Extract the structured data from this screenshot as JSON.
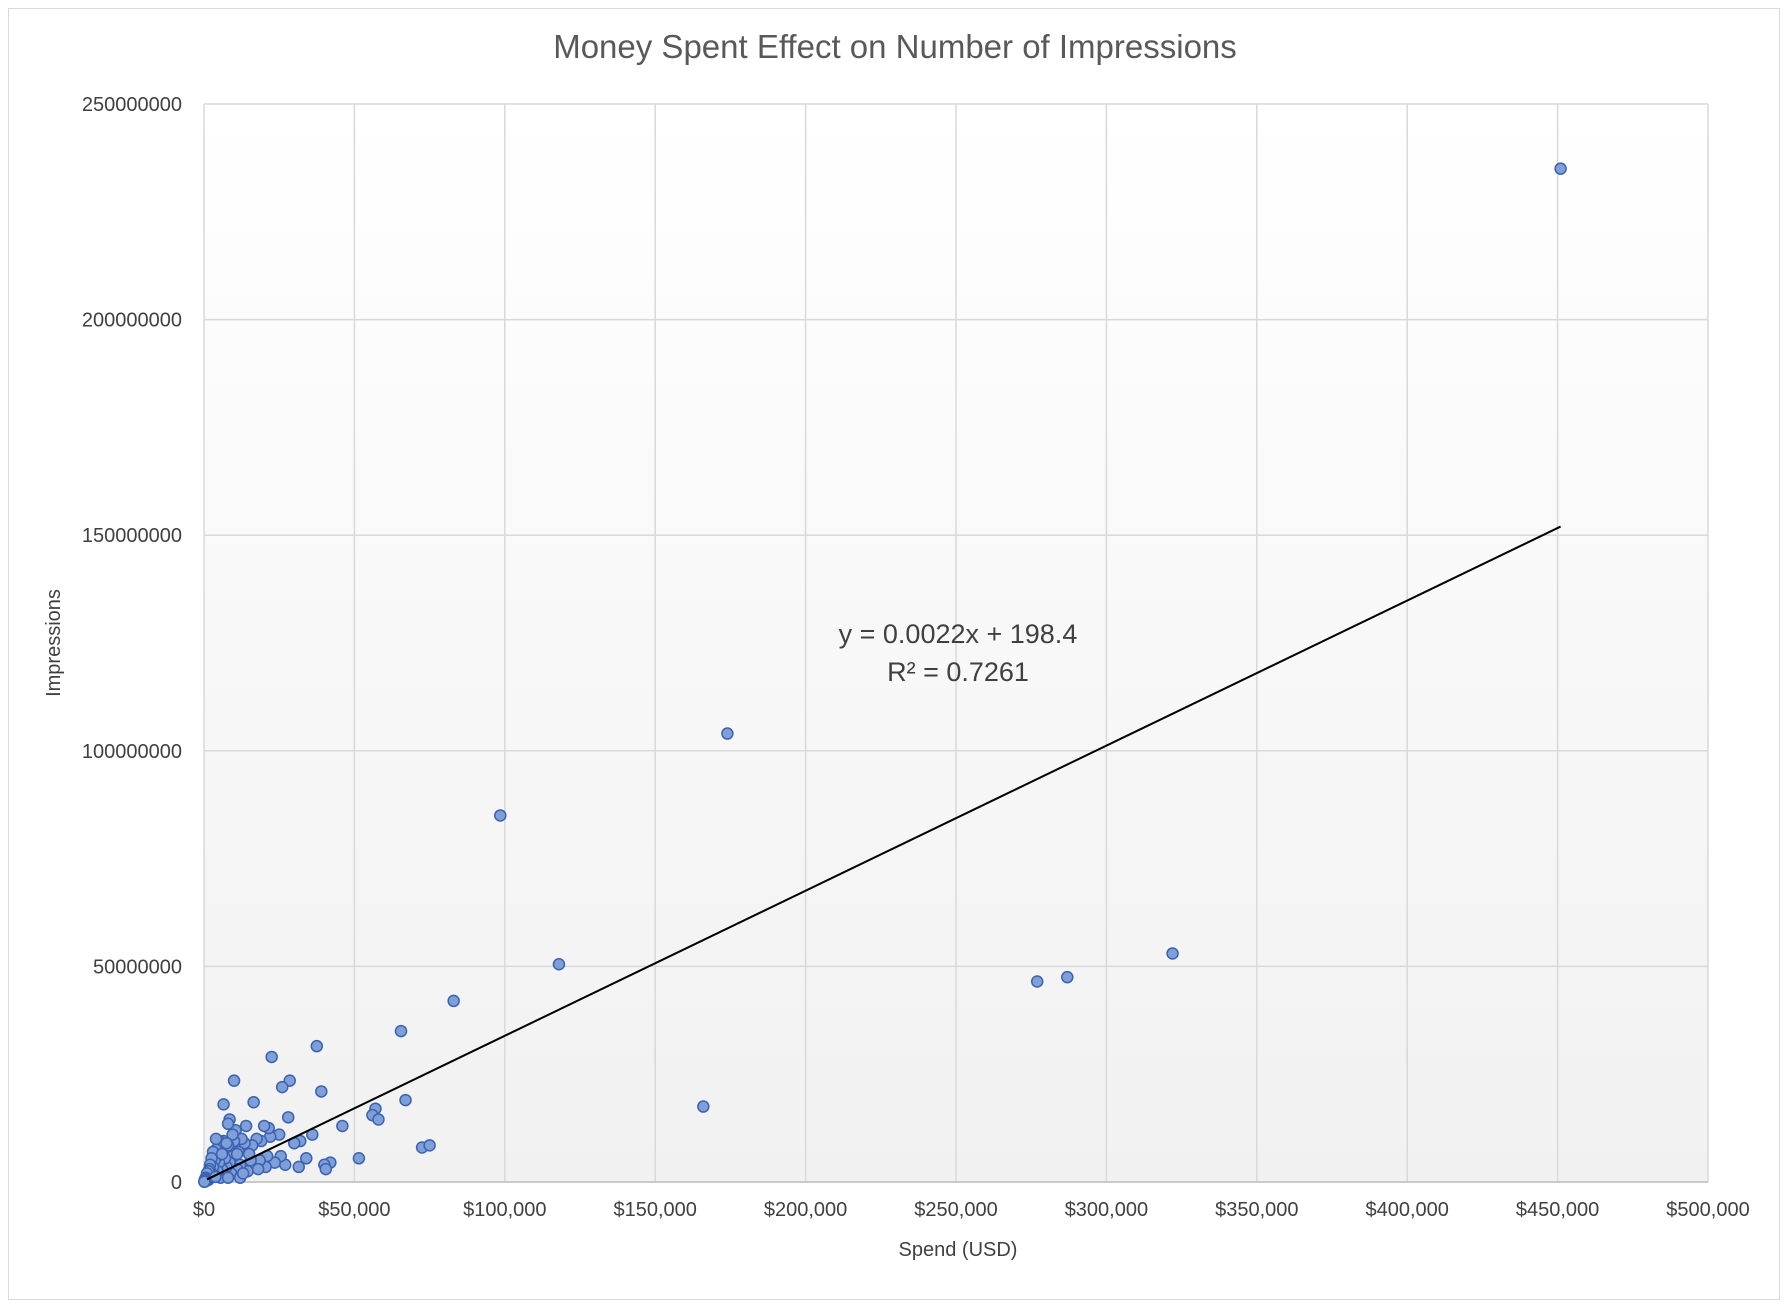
{
  "chart_data": {
    "type": "scatter",
    "title": "Money Spent Effect on Number of Impressions",
    "xlabel": "Spend (USD)",
    "ylabel": "Impressions",
    "xlim": [
      0,
      500000
    ],
    "ylim": [
      0,
      250000000
    ],
    "x_ticks": [
      0,
      50000,
      100000,
      150000,
      200000,
      250000,
      300000,
      350000,
      400000,
      450000,
      500000
    ],
    "x_tick_labels": [
      "$0",
      "$50,000",
      "$100,000",
      "$150,000",
      "$200,000",
      "$250,000",
      "$300,000",
      "$350,000",
      "$400,000",
      "$450,000",
      "$500,000"
    ],
    "y_ticks": [
      0,
      50000000,
      100000000,
      150000000,
      200000000,
      250000000
    ],
    "y_tick_labels": [
      "0",
      "50000000",
      "100000000",
      "150000000",
      "200000000",
      "250000000"
    ],
    "grid": true,
    "legend": "none",
    "marker_color": "#7f9fd9",
    "marker_edge_color": "#3b62b0",
    "trendline": {
      "type": "linear",
      "slope": 0.0022,
      "intercept": 198.4,
      "x_range": [
        1000,
        451000
      ],
      "color": "#000000",
      "equation_label": "y = 0.0022x + 198.4",
      "r2_label": "R² = 0.7261"
    },
    "points": [
      [
        451000,
        235000000
      ],
      [
        174000,
        104000000
      ],
      [
        98500,
        85000000
      ],
      [
        118000,
        50500000
      ],
      [
        322000,
        53000000
      ],
      [
        287000,
        47500000
      ],
      [
        277000,
        46500000
      ],
      [
        166000,
        17500000
      ],
      [
        83000,
        42000000
      ],
      [
        65500,
        35000000
      ],
      [
        67000,
        19000000
      ],
      [
        57000,
        17000000
      ],
      [
        56000,
        15500000
      ],
      [
        58000,
        14500000
      ],
      [
        72500,
        8000000
      ],
      [
        75000,
        8500000
      ],
      [
        51500,
        5500000
      ],
      [
        46000,
        13000000
      ],
      [
        42000,
        4500000
      ],
      [
        40000,
        4000000
      ],
      [
        40500,
        3000000
      ],
      [
        37500,
        31500000
      ],
      [
        39000,
        21000000
      ],
      [
        36000,
        11000000
      ],
      [
        34000,
        5500000
      ],
      [
        32000,
        9500000
      ],
      [
        31500,
        3500000
      ],
      [
        30000,
        9000000
      ],
      [
        28500,
        23500000
      ],
      [
        28000,
        15000000
      ],
      [
        27000,
        4000000
      ],
      [
        25500,
        6000000
      ],
      [
        26000,
        22000000
      ],
      [
        25000,
        11000000
      ],
      [
        23500,
        4500000
      ],
      [
        22500,
        29000000
      ],
      [
        22000,
        10500000
      ],
      [
        21500,
        12500000
      ],
      [
        21000,
        6000000
      ],
      [
        20500,
        3500000
      ],
      [
        20000,
        13000000
      ],
      [
        19000,
        9500000
      ],
      [
        18500,
        5000000
      ],
      [
        17500,
        10000000
      ],
      [
        16500,
        18500000
      ],
      [
        16000,
        8500000
      ],
      [
        15500,
        5000000
      ],
      [
        14500,
        2500000
      ],
      [
        14000,
        13000000
      ],
      [
        13500,
        9000000
      ],
      [
        12500,
        10000000
      ],
      [
        12000,
        4000000
      ],
      [
        11500,
        7000000
      ],
      [
        11000,
        3000000
      ],
      [
        10500,
        12000000
      ],
      [
        10000,
        23500000
      ],
      [
        10000,
        9500000
      ],
      [
        9500,
        6000000
      ],
      [
        9000,
        2000000
      ],
      [
        8500,
        14500000
      ],
      [
        8500,
        4500000
      ],
      [
        8000,
        13500000
      ],
      [
        8000,
        8500000
      ],
      [
        7500,
        3500000
      ],
      [
        7000,
        1500000
      ],
      [
        7000,
        5500000
      ],
      [
        6500,
        9500000
      ],
      [
        6500,
        18000000
      ],
      [
        6000,
        3000000
      ],
      [
        5500,
        7000000
      ],
      [
        5500,
        1000000
      ],
      [
        5000,
        9500000
      ],
      [
        5000,
        4500000
      ],
      [
        4500,
        6000000
      ],
      [
        4500,
        2500000
      ],
      [
        4000,
        7500000
      ],
      [
        4000,
        10000000
      ],
      [
        3500,
        5000000
      ],
      [
        3500,
        1500000
      ],
      [
        3000,
        3500000
      ],
      [
        3000,
        7000000
      ],
      [
        2500,
        2000000
      ],
      [
        2500,
        5500000
      ],
      [
        2000,
        1000000
      ],
      [
        2000,
        4000000
      ],
      [
        1800,
        3000000
      ],
      [
        1500,
        500000
      ],
      [
        1500,
        2500000
      ],
      [
        1200,
        1500000
      ],
      [
        1000,
        500000
      ],
      [
        1000,
        2000000
      ],
      [
        800,
        300000
      ],
      [
        600,
        1000000
      ],
      [
        500,
        200000
      ],
      [
        400,
        700000
      ],
      [
        300,
        100000
      ],
      [
        200,
        400000
      ],
      [
        100,
        50000
      ],
      [
        12000,
        1000000
      ],
      [
        15000,
        6500000
      ],
      [
        18000,
        3000000
      ],
      [
        9500,
        11000000
      ],
      [
        6000,
        6500000
      ],
      [
        7500,
        9000000
      ],
      [
        11000,
        6500000
      ],
      [
        13000,
        2000000
      ],
      [
        8000,
        1000000
      ],
      [
        3800,
        1200000
      ]
    ]
  }
}
